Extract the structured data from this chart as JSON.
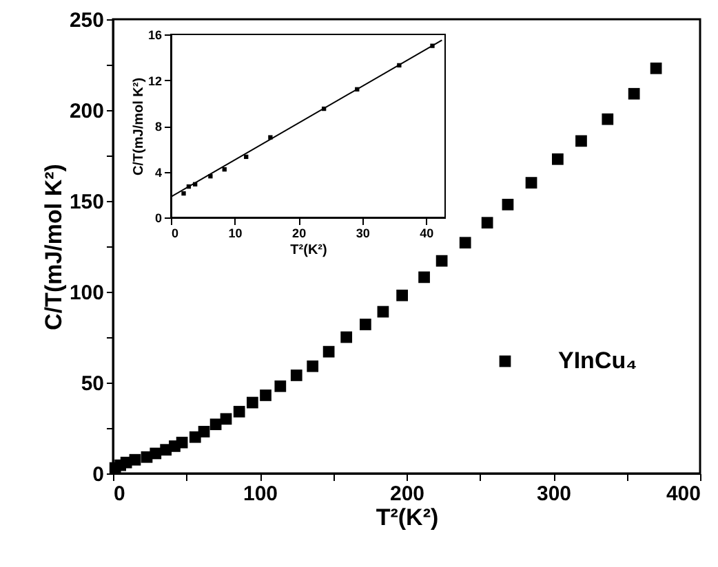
{
  "chart_data": [
    {
      "type": "scatter",
      "xlabel": "T²(K²)",
      "ylabel": "C/T(mJ/mol K²)",
      "xlim": [
        0,
        400
      ],
      "ylim": [
        0,
        250
      ],
      "xticks": [
        0,
        {
          "value": 50,
          "label": null
        },
        100,
        {
          "value": 150,
          "label": null
        },
        200,
        {
          "value": 250,
          "label": null
        },
        300,
        {
          "value": 350,
          "label": null
        },
        400
      ],
      "yticks": [
        0,
        {
          "value": 25,
          "label": null
        },
        50,
        {
          "value": 75,
          "label": null
        },
        100,
        {
          "value": 125,
          "label": null
        },
        150,
        {
          "value": 175,
          "label": null
        },
        200,
        {
          "value": 225,
          "label": null
        },
        250
      ],
      "grid": false,
      "legend": "bottom right",
      "marker": "square",
      "series": [
        {
          "name": "YInCu₄",
          "color": "#000000",
          "x": [
            1.5,
            5,
            9,
            15,
            23,
            29,
            36,
            42,
            47,
            56,
            62,
            70,
            77,
            86,
            95,
            104,
            114,
            125,
            136,
            147,
            159,
            172,
            184,
            197,
            212,
            224,
            240,
            255,
            269,
            285,
            303,
            319,
            337,
            355,
            370
          ],
          "values": [
            3,
            4.5,
            6,
            7.5,
            9,
            11,
            13,
            15,
            17,
            20,
            23,
            27,
            30,
            34,
            39,
            43,
            48,
            54,
            59,
            67,
            75,
            82,
            89,
            98,
            108,
            117,
            127,
            138,
            148,
            160,
            173,
            183,
            195,
            209,
            223
          ]
        }
      ]
    },
    {
      "type": "scatter",
      "xlabel": "T²(K²)",
      "ylabel": "C/T(mJ/mol K²)",
      "xlim": [
        0,
        43
      ],
      "ylim": [
        0,
        16
      ],
      "xticks": [
        0,
        10,
        20,
        30,
        40
      ],
      "yticks": [
        0,
        4,
        8,
        12,
        16
      ],
      "grid": false,
      "marker": "square",
      "series": [
        {
          "color": "#000000",
          "x": [
            2,
            2.8,
            3.8,
            6.2,
            8.4,
            11.8,
            15.6,
            24,
            29.2,
            35.8,
            41
          ],
          "values": [
            2.1,
            2.7,
            2.9,
            3.6,
            4.2,
            5.3,
            7.0,
            9.5,
            11.2,
            13.3,
            15.0
          ]
        },
        {
          "type": "line",
          "color": "#000000",
          "marker": "none",
          "x": [
            0,
            42.5
          ],
          "values": [
            1.8,
            15.5
          ]
        }
      ]
    }
  ]
}
